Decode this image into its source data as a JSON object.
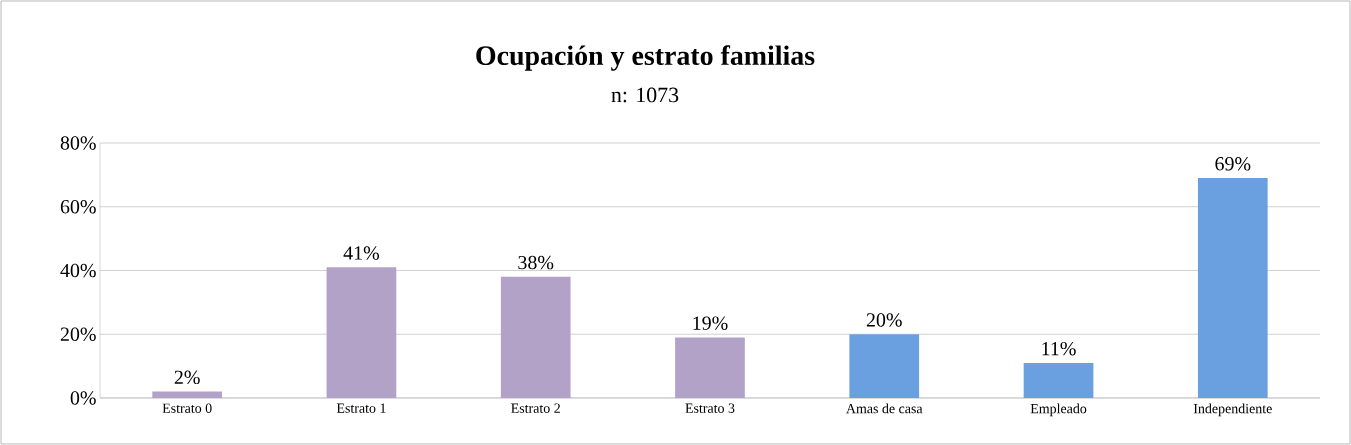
{
  "chart_data": {
    "type": "bar",
    "title": "Ocupación y estrato familias",
    "subtitle": "n: 1073",
    "categories": [
      "Estrato 0",
      "Estrato 1",
      "Estrato 2",
      "Estrato 3",
      "Amas de casa",
      "Empleado",
      "Independiente"
    ],
    "values": [
      2,
      41,
      38,
      19,
      20,
      11,
      69
    ],
    "value_labels": [
      "2%",
      "41%",
      "38%",
      "19%",
      "20%",
      "11%",
      "69%"
    ],
    "colors": [
      "#b3a2c7",
      "#b3a2c7",
      "#b3a2c7",
      "#b3a2c7",
      "#6a9fe0",
      "#6a9fe0",
      "#6a9fe0"
    ],
    "ylim": [
      0,
      80
    ],
    "yticks": [
      {
        "value": 0,
        "label": "0%"
      },
      {
        "value": 20,
        "label": "20%"
      },
      {
        "value": 40,
        "label": "40%"
      },
      {
        "value": 60,
        "label": "60%"
      },
      {
        "value": 80,
        "label": "80%"
      }
    ],
    "grid": "y"
  }
}
